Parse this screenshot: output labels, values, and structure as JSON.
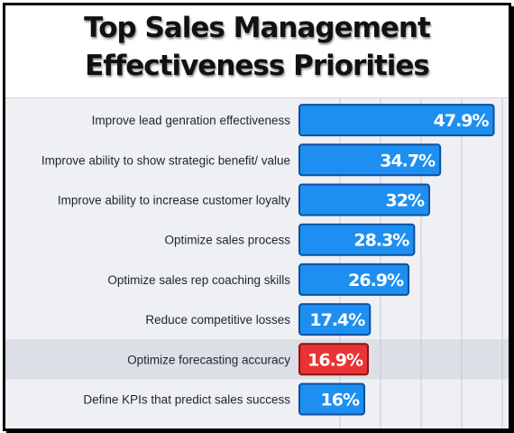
{
  "chart_data": {
    "type": "bar",
    "orientation": "horizontal",
    "title": "Top Sales Management Effectiveness Priorities",
    "title_lines": [
      "Top Sales Management",
      "Effectiveness Priorities"
    ],
    "categories": [
      "Improve lead genration effectiveness",
      "Improve ability to show strategic benefit/ value",
      "Improve ability to increase customer loyalty",
      "Optimize sales process",
      "Optimize sales rep coaching skills",
      "Reduce competitive losses",
      "Optimize forecasting accuracy",
      "Define KPIs that predict sales success"
    ],
    "values": [
      47.9,
      34.7,
      32,
      28.3,
      26.9,
      17.4,
      16.9,
      16
    ],
    "value_labels": [
      "47.9%",
      "34.7%",
      "32%",
      "28.3%",
      "26.9%",
      "17.4%",
      "16.9%",
      "16%"
    ],
    "highlight_index": 6,
    "xlim": [
      0,
      50
    ],
    "grid": true,
    "legend": "none",
    "colors": {
      "bar": "#1e8ff0",
      "bar_border": "#0e4fa0",
      "highlight": "#e83434",
      "highlight_border": "#8c1414",
      "highlight_row": "#dcdfe6",
      "gridline": "#c6cad1"
    }
  }
}
